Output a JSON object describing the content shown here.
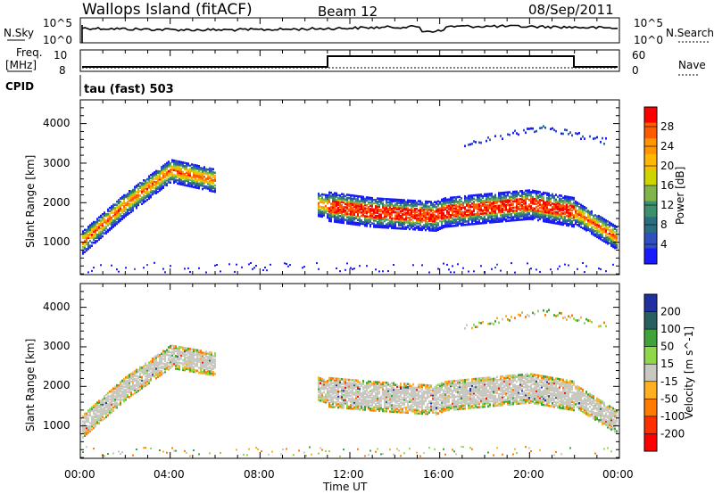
{
  "header": {
    "site": "Wallops Island (fitACF)",
    "beam": "Beam 12",
    "date": "08/Sep/2011"
  },
  "time_axis": {
    "xlabel": "Time UT",
    "ticks": [
      "00:00",
      "04:00",
      "08:00",
      "12:00",
      "16:00",
      "20:00",
      "00:00"
    ],
    "xlim_hours": [
      0,
      24
    ]
  },
  "nsky_panel": {
    "left_label": "N.Sky",
    "right_label": "N.Search",
    "left_ticks": [
      "10^5",
      "10^0"
    ],
    "right_ticks": [
      "10^5",
      "10^0"
    ]
  },
  "freq_panel": {
    "left_label": "Freq.",
    "left_unit": "[MHz]",
    "right_label": "Nave",
    "left_ticks": [
      "10",
      "8"
    ],
    "right_ticks": [
      "60",
      "0"
    ]
  },
  "cpid_panel": {
    "label": "CPID",
    "program": "tau (fast) 503"
  },
  "power_panel": {
    "ylabel": "Slant Range [km]",
    "yticks": [
      "4000",
      "3000",
      "2000",
      "1000"
    ],
    "cbar_label": "Power [dB]",
    "cbar_ticks": [
      "28",
      "24",
      "20",
      "16",
      "12",
      "8",
      "4"
    ],
    "cbar_colors": [
      "#ff0000",
      "#ff5a00",
      "#ff9500",
      "#ffb800",
      "#cdd400",
      "#7fb54a",
      "#3e8f6e",
      "#2a6f7f",
      "#3050c0",
      "#1a1aff"
    ]
  },
  "velocity_panel": {
    "ylabel": "Slant Range [km]",
    "yticks": [
      "4000",
      "3000",
      "2000",
      "1000"
    ],
    "cbar_label": "Velocity [m s^-1]",
    "cbar_ticks": [
      "200",
      "100",
      "50",
      "15",
      "-15",
      "-50",
      "-100",
      "-200"
    ],
    "cbar_colors": [
      "#2030a0",
      "#2a5f5f",
      "#3fa23a",
      "#8fd84a",
      "#c8c8c0",
      "#ffb020",
      "#ff7a00",
      "#ff3000",
      "#ff0000"
    ]
  },
  "chart_data": {
    "type": "heatmap",
    "x_hours": [
      0,
      2,
      4,
      6,
      7,
      10.5,
      11,
      13,
      15.8,
      16.2,
      18,
      20,
      22,
      24
    ],
    "power_band_center_km": [
      1000,
      2000,
      2850,
      2600,
      null,
      2000,
      1950,
      1800,
      1700,
      1800,
      1900,
      2000,
      1800,
      1100
    ],
    "velocity_band_center_km": [
      1000,
      2000,
      2800,
      2600,
      null,
      2000,
      1900,
      1800,
      1700,
      1800,
      1900,
      2000,
      1800,
      1100
    ],
    "ylim_km": [
      180,
      4600
    ],
    "power_range_db": [
      0,
      30
    ],
    "velocity_range": [
      -250,
      250
    ]
  }
}
